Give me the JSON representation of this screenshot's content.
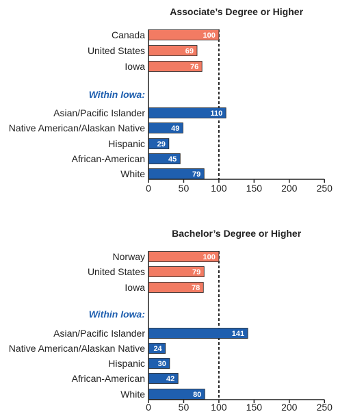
{
  "chart_data": [
    {
      "type": "bar",
      "orientation": "horizontal",
      "title": "Associate’s Degree or Higher",
      "xlim": [
        0,
        250
      ],
      "xticks": [
        "0",
        "50",
        "100",
        "150",
        "200",
        "250"
      ],
      "reference_line": 100,
      "groups": [
        {
          "label": "",
          "color": "#F27B63",
          "categories": [
            "Canada",
            "United States",
            "Iowa"
          ],
          "values": [
            100,
            69,
            76
          ]
        },
        {
          "label": "Within Iowa:",
          "color": "#1F5FAF",
          "categories": [
            "Asian/Pacific Islander",
            "Native American/Alaskan Native",
            "Hispanic",
            "African-American",
            "White"
          ],
          "values": [
            110,
            49,
            29,
            45,
            79
          ]
        }
      ]
    },
    {
      "type": "bar",
      "orientation": "horizontal",
      "title": "Bachelor’s Degree or Higher",
      "xlim": [
        0,
        250
      ],
      "xticks": [
        "0",
        "50",
        "100",
        "150",
        "200",
        "250"
      ],
      "reference_line": 100,
      "groups": [
        {
          "label": "",
          "color": "#F27B63",
          "categories": [
            "Norway",
            "United States",
            "Iowa"
          ],
          "values": [
            100,
            79,
            78
          ]
        },
        {
          "label": "Within Iowa:",
          "color": "#1F5FAF",
          "categories": [
            "Asian/Pacific Islander",
            "Native American/Alaskan Native",
            "Hispanic",
            "African-American",
            "White"
          ],
          "values": [
            141,
            24,
            30,
            42,
            80
          ]
        }
      ]
    }
  ],
  "colors": {
    "group_label": "#1F5FAF",
    "bar_outline": "#222222",
    "axis": "#222222"
  }
}
